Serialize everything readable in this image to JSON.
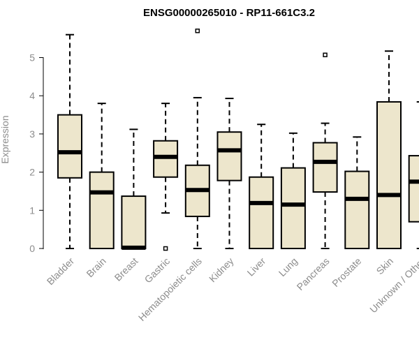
{
  "chart_data": {
    "type": "box",
    "title": "ENSG00000265010 - RP11-661C3.2",
    "xlabel": "",
    "ylabel": "Expression",
    "ylim": [
      0,
      5.8
    ],
    "yticks": [
      0,
      1,
      2,
      3,
      4,
      5
    ],
    "grid": false,
    "colors": {
      "box_fill": "#ede6cc",
      "stroke": "#000000",
      "axis_text": "#8c8c8c"
    },
    "categories": [
      "Bladder",
      "Brain",
      "Breast",
      "Gastric",
      "Hematopoietic cells",
      "Kidney",
      "Liver",
      "Lung",
      "Pancreas",
      "Prostate",
      "Skin",
      "Unknown / Other"
    ],
    "boxes": [
      {
        "min": 0.0,
        "q1": 1.85,
        "median": 2.52,
        "q3": 3.5,
        "max": 5.6,
        "outliers": []
      },
      {
        "min": 0.0,
        "q1": 0.0,
        "median": 1.47,
        "q3": 2.0,
        "max": 3.8,
        "outliers": []
      },
      {
        "min": 0.0,
        "q1": 0.0,
        "median": 0.02,
        "q3": 1.37,
        "max": 3.12,
        "outliers": []
      },
      {
        "min": 0.93,
        "q1": 1.87,
        "median": 2.4,
        "q3": 2.82,
        "max": 3.8,
        "outliers": [
          0.0
        ]
      },
      {
        "min": 0.0,
        "q1": 0.84,
        "median": 1.53,
        "q3": 2.18,
        "max": 3.95,
        "outliers": [
          5.7
        ]
      },
      {
        "min": 0.0,
        "q1": 1.78,
        "median": 2.57,
        "q3": 3.05,
        "max": 3.93,
        "outliers": []
      },
      {
        "min": 0.0,
        "q1": 0.0,
        "median": 1.19,
        "q3": 1.87,
        "max": 3.25,
        "outliers": []
      },
      {
        "min": 0.0,
        "q1": 0.0,
        "median": 1.15,
        "q3": 2.11,
        "max": 3.02,
        "outliers": []
      },
      {
        "min": 0.0,
        "q1": 1.48,
        "median": 2.27,
        "q3": 2.77,
        "max": 3.28,
        "outliers": [
          5.07
        ]
      },
      {
        "min": 0.0,
        "q1": 0.0,
        "median": 1.3,
        "q3": 2.02,
        "max": 2.92,
        "outliers": []
      },
      {
        "min": 0.0,
        "q1": 0.0,
        "median": 1.4,
        "q3": 3.84,
        "max": 5.17,
        "outliers": []
      },
      {
        "min": 0.0,
        "q1": 0.7,
        "median": 1.75,
        "q3": 2.43,
        "max": 3.84,
        "outliers": []
      }
    ]
  }
}
